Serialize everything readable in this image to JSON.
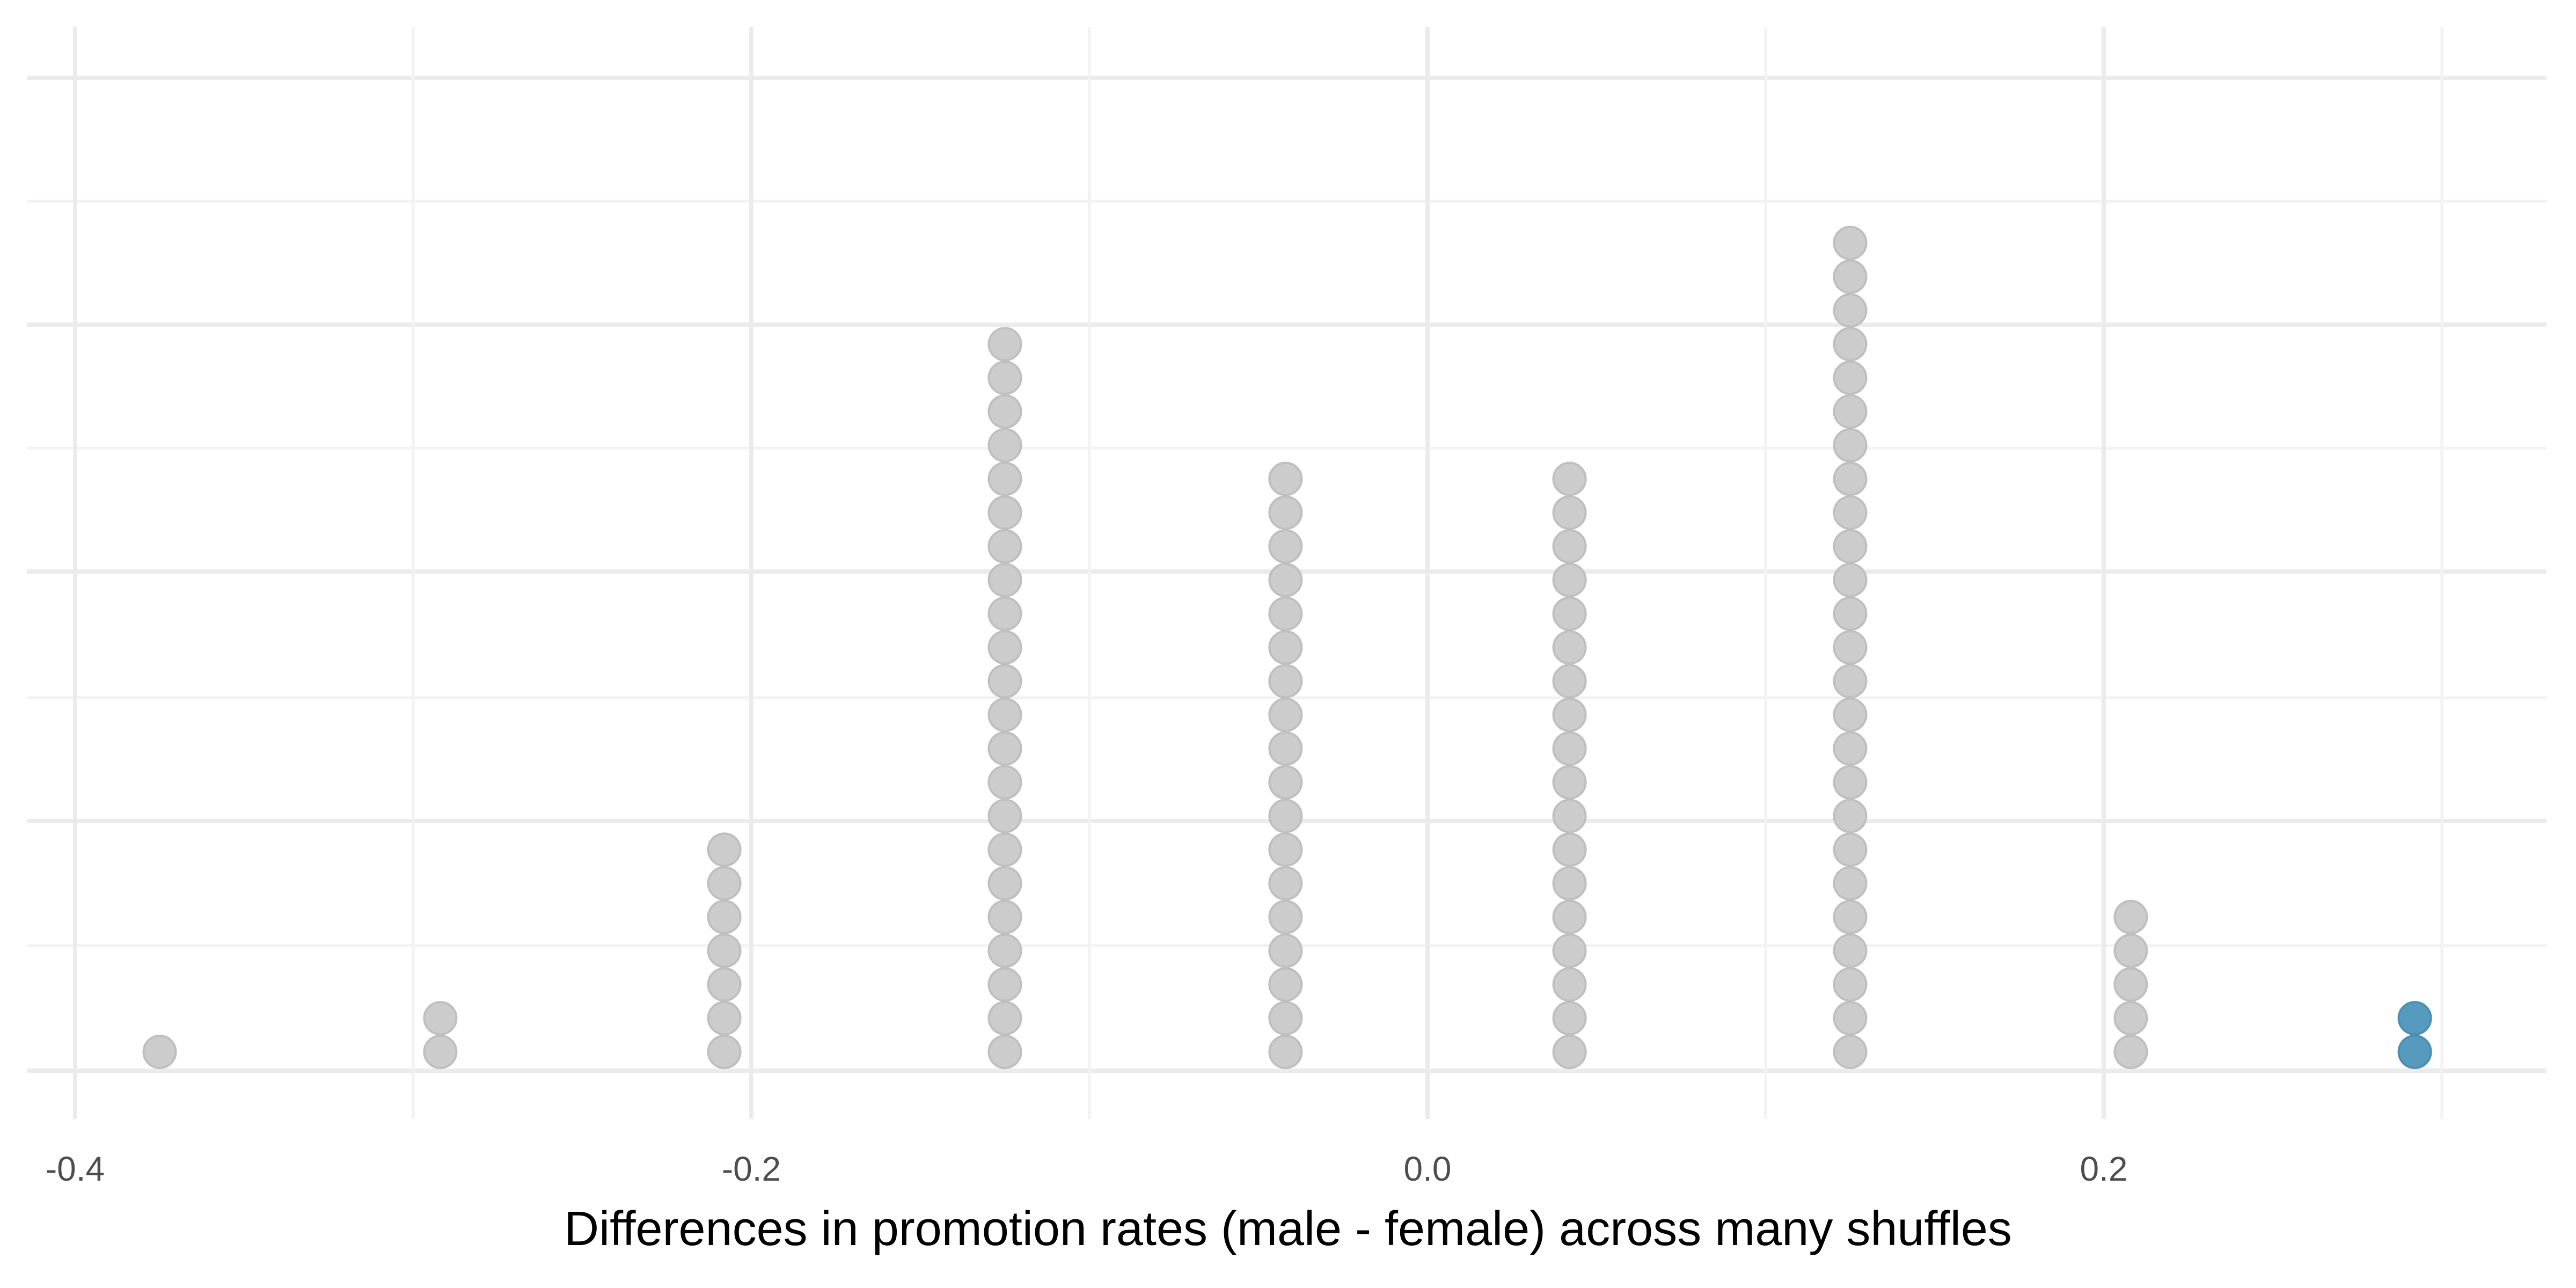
{
  "chart_data": {
    "type": "scatter",
    "subtype": "dot-plot",
    "title": "",
    "xlabel": "Differences in promotion rates (male - female) across many shuffles",
    "ylabel": "",
    "xlim": [
      -0.42,
      0.33
    ],
    "x_ticks": [
      {
        "value": -0.4,
        "label": "-0.4"
      },
      {
        "value": -0.2,
        "label": "-0.2"
      },
      {
        "value": 0.0,
        "label": "0.0"
      },
      {
        "value": 0.2,
        "label": "0.2"
      }
    ],
    "x_minor_ticks": [
      -0.3,
      -0.1,
      0.1,
      0.3
    ],
    "grid": true,
    "y_ticks_visible": false,
    "stacks": [
      {
        "x": -0.375,
        "count": 1,
        "highlight": false
      },
      {
        "x": -0.292,
        "count": 2,
        "highlight": false
      },
      {
        "x": -0.208,
        "count": 7,
        "highlight": false
      },
      {
        "x": -0.125,
        "count": 22,
        "highlight": false
      },
      {
        "x": -0.042,
        "count": 18,
        "highlight": false
      },
      {
        "x": 0.042,
        "count": 18,
        "highlight": false
      },
      {
        "x": 0.125,
        "count": 25,
        "highlight": false
      },
      {
        "x": 0.208,
        "count": 5,
        "highlight": false
      },
      {
        "x": 0.292,
        "count": 2,
        "highlight": true
      }
    ],
    "colors": {
      "dot": "#cccccc",
      "dot_stroke": "#bfbfbf",
      "highlight": "#569bbd",
      "highlight_stroke": "#4a8fb1",
      "grid_major": "#ebebeb",
      "grid_minor": "#f2f2f2"
    }
  }
}
